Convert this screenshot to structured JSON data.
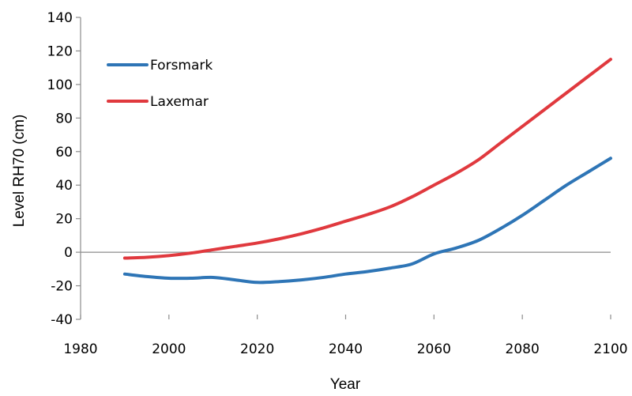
{
  "chart_data": {
    "type": "line",
    "title": "",
    "xlabel": "Year",
    "ylabel": "Level RH70 (cm)",
    "xlim": [
      1980,
      2100
    ],
    "ylim": [
      -40,
      140
    ],
    "x_ticks": [
      1980,
      2000,
      2020,
      2040,
      2060,
      2080,
      2100
    ],
    "y_ticks": [
      -40,
      -20,
      0,
      20,
      40,
      60,
      80,
      100,
      120,
      140
    ],
    "grid": false,
    "legend_position": "top-left",
    "series": [
      {
        "name": "Forsmark",
        "color": "#2e75b6",
        "x": [
          1990,
          1995,
          2000,
          2005,
          2010,
          2015,
          2020,
          2025,
          2030,
          2035,
          2040,
          2045,
          2050,
          2055,
          2060,
          2065,
          2070,
          2075,
          2080,
          2085,
          2090,
          2095,
          2100
        ],
        "y": [
          -13,
          -14.5,
          -15.5,
          -15.5,
          -15,
          -16.5,
          -18,
          -17.5,
          -16.5,
          -15,
          -13,
          -11.5,
          -9.5,
          -7,
          -1,
          2.5,
          7,
          14,
          22,
          31,
          40,
          48,
          56
        ]
      },
      {
        "name": "Laxemar",
        "color": "#e0393e",
        "x": [
          1990,
          1995,
          2000,
          2005,
          2010,
          2015,
          2020,
          2025,
          2030,
          2035,
          2040,
          2045,
          2050,
          2055,
          2060,
          2065,
          2070,
          2075,
          2080,
          2085,
          2090,
          2095,
          2100
        ],
        "y": [
          -3.5,
          -3,
          -2,
          -0.5,
          1.5,
          3.5,
          5.5,
          8,
          11,
          14.5,
          18.5,
          22.5,
          27,
          33,
          40,
          47,
          55,
          65,
          75,
          85,
          95,
          105,
          115
        ]
      }
    ]
  }
}
